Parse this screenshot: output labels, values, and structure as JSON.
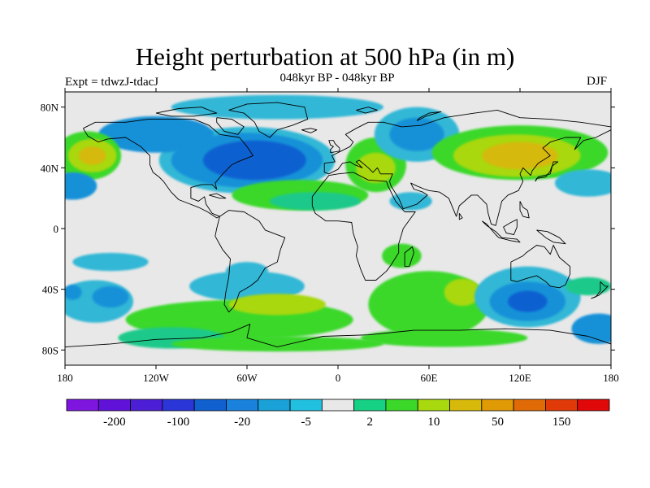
{
  "title": "Height perturbation at 500 hPa (in m)",
  "subtitle": "048kyr BP - 048kyr BP",
  "left_label": "Expt = tdwzJ-tdacJ",
  "season": "DJF",
  "map": {
    "projection": "cylindrical-equidistant",
    "lon_range": [
      -180,
      180
    ],
    "lat_range": [
      -90,
      90
    ],
    "background_color": "#e8e8e8",
    "x_ticks": [
      {
        "lon": -180,
        "label": "180"
      },
      {
        "lon": -120,
        "label": "120W"
      },
      {
        "lon": -60,
        "label": "60W"
      },
      {
        "lon": 0,
        "label": "0"
      },
      {
        "lon": 60,
        "label": "60E"
      },
      {
        "lon": 120,
        "label": "120E"
      },
      {
        "lon": 180,
        "label": "180"
      }
    ],
    "y_ticks": [
      {
        "lat": 80,
        "label": "80N"
      },
      {
        "lat": 40,
        "label": "40N"
      },
      {
        "lat": 0,
        "label": "0"
      },
      {
        "lat": -40,
        "label": "40S"
      },
      {
        "lat": -80,
        "label": "80S"
      }
    ],
    "fields": [
      {
        "name": "n-america-low",
        "lon": -60,
        "lat": 45,
        "rlon": 58,
        "rlat": 22,
        "color": "#33b7d6"
      },
      {
        "name": "n-america-low",
        "lon": -60,
        "lat": 45,
        "rlon": 50,
        "rlat": 18,
        "color": "#1891d8"
      },
      {
        "name": "n-america-low",
        "lon": -55,
        "lat": 45,
        "rlon": 34,
        "rlat": 13,
        "color": "#1060d0"
      },
      {
        "name": "canada-low",
        "lon": -120,
        "lat": 62,
        "rlon": 38,
        "rlat": 12,
        "color": "#1891d8"
      },
      {
        "name": "arctic-low",
        "lon": -40,
        "lat": 80,
        "rlon": 70,
        "rlat": 8,
        "color": "#33b7d6"
      },
      {
        "name": "atlantic-band",
        "lon": -25,
        "lat": 22,
        "rlon": 45,
        "rlat": 10,
        "color": "#3bd82a"
      },
      {
        "name": "atlantic-band",
        "lon": -15,
        "lat": 18,
        "rlon": 30,
        "rlat": 6,
        "color": "#1cc98a"
      },
      {
        "name": "pacific-high",
        "lon": -165,
        "lat": 48,
        "rlon": 22,
        "rlat": 16,
        "color": "#3bd82a"
      },
      {
        "name": "pacific-high",
        "lon": -162,
        "lat": 48,
        "rlon": 16,
        "rlat": 11,
        "color": "#a8d80e"
      },
      {
        "name": "pacific-high",
        "lon": -162,
        "lat": 48,
        "rlon": 9,
        "rlat": 6,
        "color": "#d6b90b"
      },
      {
        "name": "pacific-low",
        "lon": -175,
        "lat": 28,
        "rlon": 16,
        "rlat": 9,
        "color": "#1891d8"
      },
      {
        "name": "europe-high",
        "lon": 25,
        "lat": 42,
        "rlon": 20,
        "rlat": 18,
        "color": "#3bd82a"
      },
      {
        "name": "europe-high",
        "lon": 25,
        "lat": 40,
        "rlon": 13,
        "rlat": 10,
        "color": "#a8d80e"
      },
      {
        "name": "siberia-low",
        "lon": 52,
        "lat": 62,
        "rlon": 28,
        "rlat": 18,
        "color": "#33b7d6"
      },
      {
        "name": "siberia-low",
        "lon": 52,
        "lat": 62,
        "rlon": 18,
        "rlat": 11,
        "color": "#1891d8"
      },
      {
        "name": "asia-high",
        "lon": 120,
        "lat": 50,
        "rlon": 58,
        "rlat": 18,
        "color": "#3bd82a"
      },
      {
        "name": "asia-high",
        "lon": 118,
        "lat": 48,
        "rlon": 42,
        "rlat": 14,
        "color": "#a8d80e"
      },
      {
        "name": "asia-high",
        "lon": 120,
        "lat": 48,
        "rlon": 25,
        "rlat": 9,
        "color": "#d6b90b"
      },
      {
        "name": "npacific-low",
        "lon": 165,
        "lat": 30,
        "rlon": 22,
        "rlat": 9,
        "color": "#33b7d6"
      },
      {
        "name": "arabia-low",
        "lon": 48,
        "lat": 18,
        "rlon": 14,
        "rlat": 6,
        "color": "#33b7d6"
      },
      {
        "name": "africa-pos",
        "lon": 42,
        "lat": -18,
        "rlon": 13,
        "rlat": 8,
        "color": "#3bd82a"
      },
      {
        "name": "sa-low",
        "lon": -150,
        "lat": -22,
        "rlon": 25,
        "rlat": 6,
        "color": "#33b7d6"
      },
      {
        "name": "spac-low",
        "lon": -160,
        "lat": -48,
        "rlon": 25,
        "rlat": 14,
        "color": "#33b7d6"
      },
      {
        "name": "spac-low",
        "lon": -150,
        "lat": -45,
        "rlon": 12,
        "rlat": 7,
        "color": "#1891d8"
      },
      {
        "name": "spac-low",
        "lon": -175,
        "lat": -42,
        "rlon": 6,
        "rlat": 5,
        "color": "#1891d8"
      },
      {
        "name": "sa-mid-low",
        "lon": -60,
        "lat": -38,
        "rlon": 38,
        "rlat": 10,
        "color": "#33b7d6"
      },
      {
        "name": "sa-mid-low",
        "lon": -60,
        "lat": -28,
        "rlon": 14,
        "rlat": 6,
        "color": "#33b7d6"
      },
      {
        "name": "south-band-pos",
        "lon": -65,
        "lat": -60,
        "rlon": 75,
        "rlat": 13,
        "color": "#3bd82a"
      },
      {
        "name": "south-band-pos",
        "lon": -40,
        "lat": -50,
        "rlon": 32,
        "rlat": 7,
        "color": "#a8d80e"
      },
      {
        "name": "south-band-pos",
        "lon": -110,
        "lat": -72,
        "rlon": 35,
        "rlat": 7,
        "color": "#1cc98a"
      },
      {
        "name": "indian-pos",
        "lon": 60,
        "lat": -50,
        "rlon": 40,
        "rlat": 22,
        "color": "#3bd82a"
      },
      {
        "name": "indian-pos",
        "lon": 82,
        "lat": -42,
        "rlon": 12,
        "rlat": 9,
        "color": "#a8d80e"
      },
      {
        "name": "indian-low",
        "lon": 125,
        "lat": -45,
        "rlon": 35,
        "rlat": 20,
        "color": "#33b7d6"
      },
      {
        "name": "indian-low",
        "lon": 125,
        "lat": -48,
        "rlon": 25,
        "rlat": 13,
        "color": "#1891d8"
      },
      {
        "name": "indian-low",
        "lon": 125,
        "lat": -48,
        "rlon": 13,
        "rlat": 7,
        "color": "#1060d0"
      },
      {
        "name": "east-pos",
        "lon": 165,
        "lat": -38,
        "rlon": 15,
        "rlat": 6,
        "color": "#1cc98a"
      },
      {
        "name": "east-low",
        "lon": 172,
        "lat": -66,
        "rlon": 18,
        "rlat": 10,
        "color": "#1891d8"
      },
      {
        "name": "antarctic-pos",
        "lon": 70,
        "lat": -72,
        "rlon": 55,
        "rlat": 6,
        "color": "#3bd82a"
      },
      {
        "name": "antarctic-pos",
        "lon": -40,
        "lat": -76,
        "rlon": 70,
        "rlat": 5,
        "color": "#3bd82a"
      }
    ]
  },
  "colorbar": {
    "colors": [
      "#7f16e0",
      "#6012d8",
      "#4c1ed6",
      "#2a36d8",
      "#1060d0",
      "#1a82dc",
      "#1aa2d8",
      "#22c0e0",
      "#e8e8e8",
      "#16d184",
      "#3bd82a",
      "#a8d80e",
      "#d6b90b",
      "#e09a06",
      "#e06a05",
      "#e03a08",
      "#e00808"
    ],
    "labels": [
      {
        "after_box": 1.5,
        "text": "-200"
      },
      {
        "after_box": 3.5,
        "text": "-100"
      },
      {
        "after_box": 5.5,
        "text": "-20"
      },
      {
        "after_box": 7.5,
        "text": "-5"
      },
      {
        "after_box": 9.5,
        "text": "2"
      },
      {
        "after_box": 11.5,
        "text": "10"
      },
      {
        "after_box": 13.5,
        "text": "50"
      },
      {
        "after_box": 15.5,
        "text": "150"
      }
    ]
  }
}
